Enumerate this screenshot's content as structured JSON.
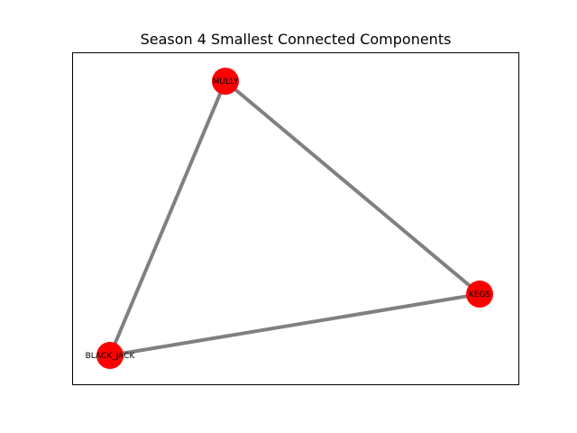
{
  "figure": {
    "title": "Season 4 Smallest Connected Components"
  },
  "graph": {
    "nodes": [
      {
        "id": "MULLY",
        "label": "MULLY"
      },
      {
        "id": "KEGS",
        "label": "KEGS"
      },
      {
        "id": "BLACK_JACK",
        "label": "BLACK_JACK"
      }
    ],
    "edges": [
      {
        "source": "MULLY",
        "target": "KEGS"
      },
      {
        "source": "MULLY",
        "target": "BLACK_JACK"
      },
      {
        "source": "BLACK_JACK",
        "target": "KEGS"
      }
    ]
  },
  "colors": {
    "node_fill": "#ff0000",
    "edge_stroke": "#808080",
    "frame_stroke": "#000000",
    "background": "#ffffff"
  }
}
